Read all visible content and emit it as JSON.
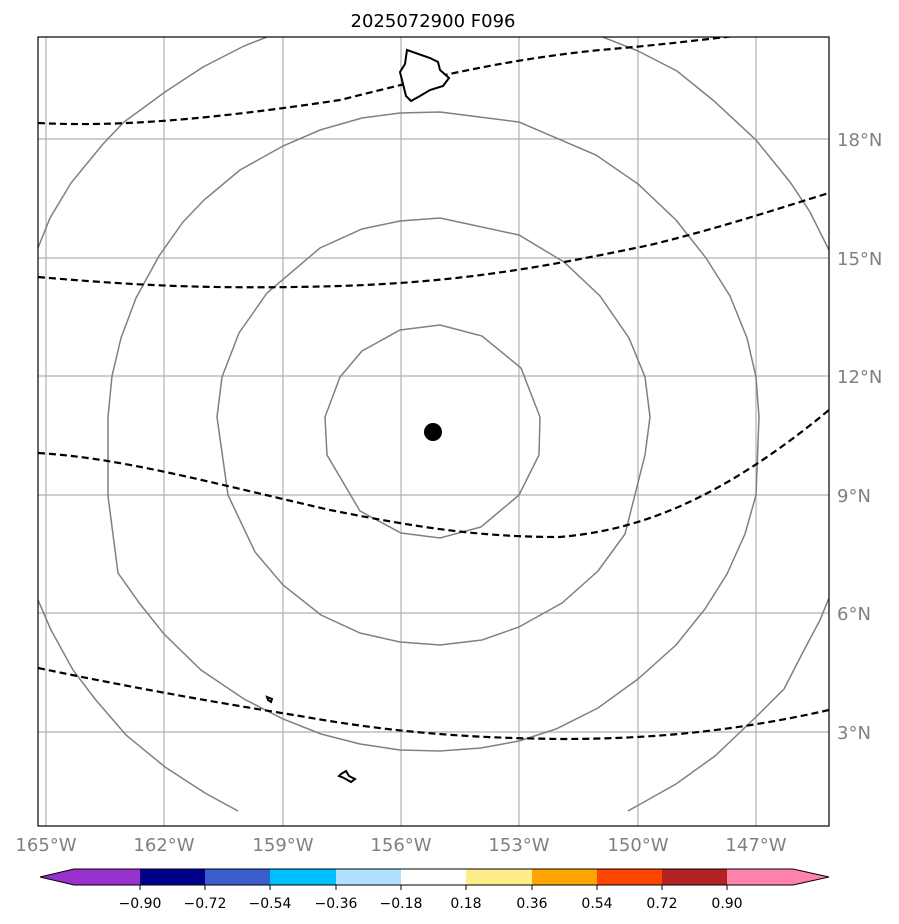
{
  "title": "2025072900 F096",
  "map": {
    "lon_labels": [
      "165°W",
      "162°W",
      "159°W",
      "156°W",
      "153°W",
      "150°W",
      "147°W"
    ],
    "lat_labels": [
      "18°N",
      "15°N",
      "12°N",
      "9°N",
      "6°N",
      "3°N"
    ],
    "grid_color": "#b0b0b0",
    "contour_color": "#808080",
    "streamline_color": "#000000",
    "center_marker": "storm-center-dot"
  },
  "colorbar": {
    "tick_labels": [
      "−0.90",
      "−0.72",
      "−0.54",
      "−0.36",
      "−0.18",
      "0.18",
      "0.36",
      "0.54",
      "0.72",
      "0.90"
    ],
    "colors": [
      "#9932cc",
      "#00008b",
      "#3a5fcd",
      "#00bfff",
      "#b0e2ff",
      "#ffffff",
      "#ffec8b",
      "#ffa500",
      "#ff4500",
      "#b22222",
      "#ff82ab"
    ]
  }
}
